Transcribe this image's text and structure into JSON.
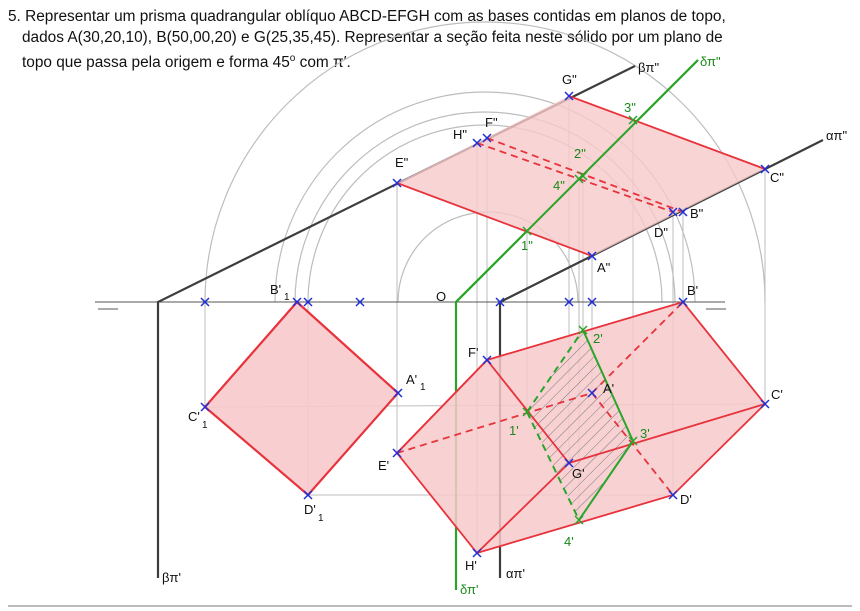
{
  "problem": {
    "line1": "5. Representar um prisma quadrangular oblíquo ABCD-EFGH com as bases contidas em planos de topo,",
    "line2": "dados A(30,20,10), B(50,00,20) e G(25,35,45). Representar a seção feita neste sólido por um plano de",
    "line3_a": "topo que passa pela origem e forma 45",
    "line3_deg": "o",
    "line3_b": " com π′."
  },
  "labels": {
    "G2": "G\"",
    "F2": "F\"",
    "H2": "H\"",
    "E2": "E\"",
    "C2": "C\"",
    "B2": "B\"",
    "D2": "D\"",
    "A2": "A\"",
    "p3_2": "3\"",
    "p2_2": "2\"",
    "p4_2": "4\"",
    "p1_2": "1\"",
    "beta2": "βπ\"",
    "alpha2": "απ\"",
    "delta2": "δπ\"",
    "O": "O",
    "B1p": "B'",
    "B1p_sub": "1",
    "A1p": "A'",
    "A1p_sub": "1",
    "C1p": "C'",
    "C1p_sub": "1",
    "D1p": "D'",
    "D1p_sub": "1",
    "Bp": "B'",
    "Fp": "F'",
    "Ap": "A'",
    "Cp": "C'",
    "Ep": "E'",
    "Gp": "G'",
    "Dp": "D'",
    "Hp": "H'",
    "p2p": "2'",
    "p1p": "1'",
    "p3p": "3'",
    "p4p": "4'",
    "beta1": "βπ'",
    "alpha1": "απ'",
    "delta1": "δπ'"
  },
  "colors": {
    "red": "#e8323c",
    "fill": "#f7c9cb",
    "green": "#2aa52a",
    "blue": "#1f2fd6",
    "gray": "#b9b9b9",
    "dark": "#4a4a4a"
  }
}
